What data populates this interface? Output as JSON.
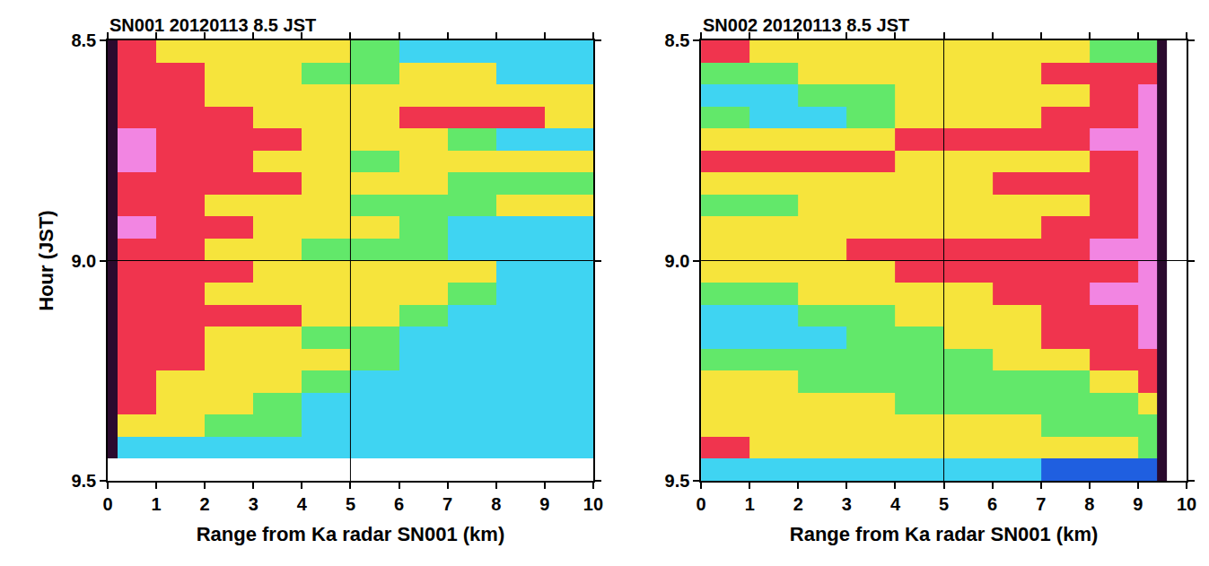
{
  "chart_data": [
    {
      "type": "heatmap",
      "title": "SN001 20120113 8.5 JST",
      "x_label": "Range from Ka radar SN001 (km)",
      "y_label": "Hour (JST)",
      "xlim": [
        0,
        10
      ],
      "xticks": [
        0,
        1,
        2,
        3,
        4,
        5,
        6,
        7,
        8,
        9,
        10
      ],
      "ylim": [
        9.5,
        8.5
      ],
      "yticks": [
        8.5,
        {
          "value": 9,
          "label": "9.0"
        },
        9.5
      ],
      "reference_lines": {
        "x": [
          5
        ],
        "y": [
          9
        ]
      },
      "color_range": [
        -1,
        5
      ],
      "x_edges": [
        0,
        0.2,
        1,
        2,
        3,
        4,
        5,
        6,
        7,
        8,
        9,
        10
      ],
      "y_edges": [
        8.5,
        8.55,
        8.6,
        8.65,
        8.7,
        8.75,
        8.8,
        8.85,
        8.9,
        8.95,
        9.0,
        9.05,
        9.1,
        9.15,
        9.2,
        9.25,
        9.3,
        9.35,
        9.4,
        9.45
      ],
      "cells": [
        [
          -1,
          4,
          3,
          3,
          3,
          3,
          2,
          1,
          1,
          1,
          1
        ],
        [
          -1,
          4,
          4,
          3,
          3,
          2,
          2,
          3,
          3,
          1,
          1
        ],
        [
          -1,
          4,
          4,
          3,
          3,
          3,
          3,
          3,
          3,
          3,
          3
        ],
        [
          -1,
          4,
          4,
          4,
          3,
          3,
          3,
          4,
          4,
          4,
          3
        ],
        [
          -1,
          5,
          4,
          4,
          4,
          3,
          3,
          3,
          2,
          1,
          1
        ],
        [
          -1,
          5,
          4,
          4,
          3,
          3,
          2,
          3,
          3,
          3,
          3
        ],
        [
          -1,
          4,
          4,
          4,
          4,
          3,
          3,
          3,
          2,
          2,
          2
        ],
        [
          -1,
          4,
          4,
          3,
          3,
          3,
          2,
          2,
          2,
          3,
          3
        ],
        [
          -1,
          5,
          4,
          4,
          3,
          3,
          3,
          2,
          1,
          1,
          1
        ],
        [
          -1,
          4,
          4,
          3,
          3,
          2,
          2,
          2,
          1,
          1,
          1
        ],
        [
          -1,
          4,
          4,
          4,
          3,
          3,
          3,
          3,
          3,
          1,
          1
        ],
        [
          -1,
          4,
          4,
          3,
          3,
          3,
          3,
          3,
          2,
          1,
          1
        ],
        [
          -1,
          4,
          4,
          4,
          4,
          3,
          3,
          2,
          1,
          1,
          1
        ],
        [
          -1,
          4,
          4,
          3,
          3,
          2,
          2,
          1,
          1,
          1,
          1
        ],
        [
          -1,
          4,
          4,
          3,
          3,
          3,
          2,
          1,
          1,
          1,
          1
        ],
        [
          -1,
          4,
          3,
          3,
          3,
          2,
          1,
          1,
          1,
          1,
          1
        ],
        [
          -1,
          4,
          3,
          3,
          2,
          1,
          1,
          1,
          1,
          1,
          1
        ],
        [
          -1,
          3,
          3,
          2,
          2,
          1,
          1,
          1,
          1,
          1,
          1
        ],
        [
          -1,
          1,
          1,
          1,
          1,
          1,
          1,
          1,
          1,
          1,
          1
        ]
      ]
    },
    {
      "type": "heatmap",
      "title": "SN002 20120113 8.5 JST",
      "x_label": "Range from Ka radar SN001 (km)",
      "xlim": [
        0,
        10
      ],
      "xticks": [
        0,
        1,
        2,
        3,
        4,
        5,
        6,
        7,
        8,
        9,
        10
      ],
      "ylim": [
        9.5,
        8.5
      ],
      "yticks": [
        8.5,
        {
          "value": 9,
          "label": "9.0"
        },
        9.5
      ],
      "reference_lines": {
        "x": [
          5
        ],
        "y": [
          9
        ]
      },
      "color_range": [
        -1,
        5
      ],
      "x_edges": [
        0,
        1,
        2,
        3,
        4,
        5,
        6,
        7,
        8,
        9,
        9.4,
        9.6
      ],
      "y_edges": [
        8.5,
        8.55,
        8.6,
        8.65,
        8.7,
        8.75,
        8.8,
        8.85,
        8.9,
        8.95,
        9.0,
        9.05,
        9.1,
        9.15,
        9.2,
        9.25,
        9.3,
        9.35,
        9.4,
        9.45,
        9.5
      ],
      "cells": [
        [
          4,
          3,
          3,
          3,
          3,
          3,
          3,
          3,
          2,
          2,
          -1
        ],
        [
          2,
          2,
          3,
          3,
          3,
          3,
          3,
          4,
          4,
          4,
          -1
        ],
        [
          1,
          1,
          2,
          2,
          3,
          3,
          3,
          3,
          4,
          5,
          -1
        ],
        [
          2,
          1,
          1,
          2,
          3,
          3,
          3,
          4,
          4,
          5,
          -1
        ],
        [
          3,
          3,
          3,
          3,
          4,
          4,
          4,
          4,
          5,
          5,
          -1
        ],
        [
          4,
          4,
          4,
          4,
          3,
          3,
          3,
          3,
          4,
          5,
          -1
        ],
        [
          3,
          3,
          3,
          3,
          3,
          3,
          4,
          4,
          4,
          5,
          -1
        ],
        [
          2,
          2,
          3,
          3,
          3,
          3,
          3,
          3,
          4,
          5,
          -1
        ],
        [
          3,
          3,
          3,
          3,
          3,
          3,
          3,
          4,
          4,
          5,
          -1
        ],
        [
          3,
          3,
          3,
          4,
          4,
          4,
          4,
          4,
          5,
          5,
          -1
        ],
        [
          3,
          3,
          3,
          3,
          4,
          4,
          4,
          4,
          4,
          5,
          -1
        ],
        [
          2,
          2,
          3,
          3,
          3,
          3,
          4,
          4,
          5,
          5,
          -1
        ],
        [
          1,
          1,
          2,
          2,
          3,
          3,
          3,
          4,
          4,
          5,
          -1
        ],
        [
          1,
          1,
          1,
          2,
          2,
          3,
          3,
          4,
          4,
          5,
          -1
        ],
        [
          2,
          2,
          2,
          2,
          2,
          2,
          3,
          3,
          4,
          4,
          -1
        ],
        [
          3,
          3,
          2,
          2,
          2,
          2,
          2,
          2,
          3,
          4,
          -1
        ],
        [
          3,
          3,
          3,
          3,
          2,
          2,
          2,
          2,
          2,
          3,
          -1
        ],
        [
          3,
          3,
          3,
          3,
          3,
          3,
          3,
          2,
          2,
          2,
          -1
        ],
        [
          4,
          3,
          3,
          3,
          3,
          3,
          3,
          3,
          3,
          2,
          -1
        ],
        [
          1,
          1,
          1,
          1,
          1,
          1,
          1,
          0,
          0,
          0,
          -1
        ]
      ]
    }
  ]
}
